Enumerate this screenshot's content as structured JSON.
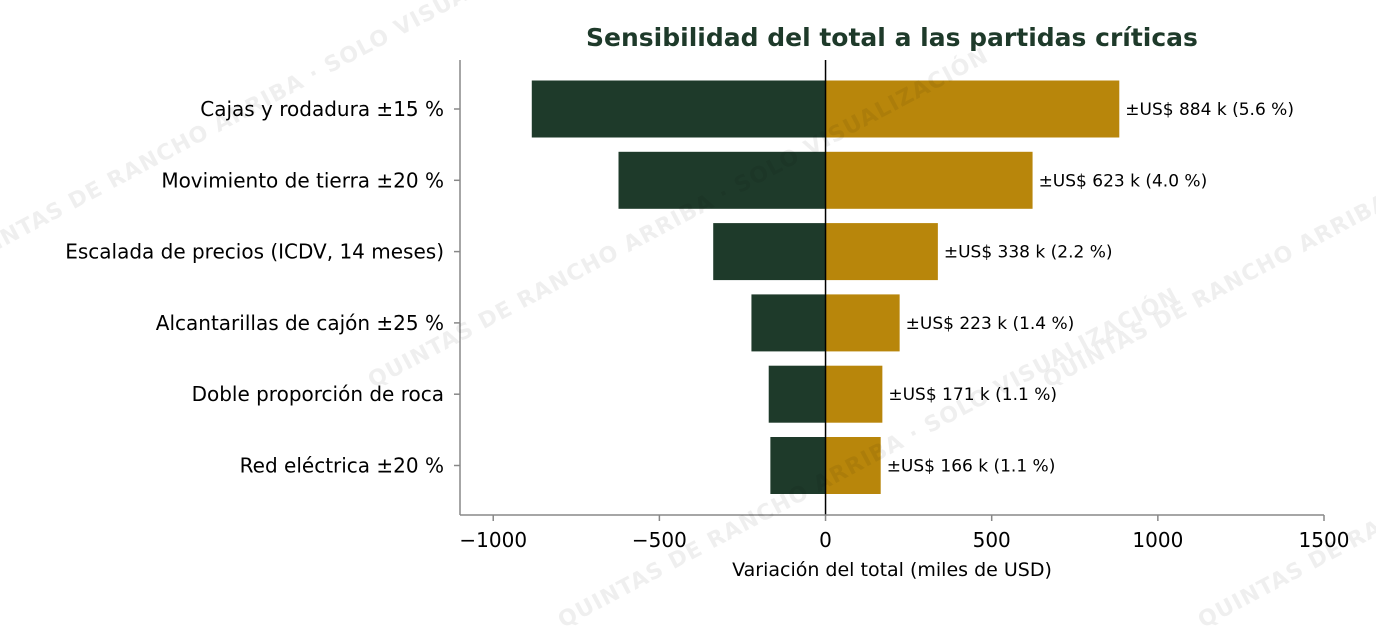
{
  "chart_data": {
    "type": "bar",
    "orientation": "horizontal",
    "style": "tornado",
    "title": "Sensibilidad del total a las partidas críticas",
    "xlabel": "Variación del total (miles de USD)",
    "ylabel": "",
    "xlim": [
      -1100,
      1500
    ],
    "xticks": [
      -1000,
      -500,
      0,
      500,
      1000,
      1500
    ],
    "xtick_labels": [
      "−1000",
      "−500",
      "0",
      "500",
      "1000",
      "1500"
    ],
    "categories": [
      "Cajas y rodadura ±15 %",
      "Movimiento de tierra ±20 %",
      "Escalada de precios (ICDV, 14 meses)",
      "Alcantarillas de cajón ±25 %",
      "Doble proporción de roca",
      "Red eléctrica ±20 %"
    ],
    "values": [
      884,
      623,
      338,
      223,
      171,
      166
    ],
    "series": [
      {
        "values": [
          -884,
          -623,
          -338,
          -223,
          -171,
          -166
        ]
      },
      {
        "values": [
          884,
          623,
          338,
          223,
          171,
          166
        ]
      }
    ],
    "data_labels": [
      "±US$ 884 k (5.6 %)",
      "±US$ 623 k (4.0 %)",
      "±US$ 338 k (2.2 %)",
      "±US$ 223 k (1.4 %)",
      "±US$ 171 k (1.1 %)",
      "±US$ 166 k (1.1 %)"
    ],
    "grid": false,
    "colors": {
      "negative": "#1e3a2a",
      "positive": "#b8860b",
      "title": "#1e3a2a",
      "axis": "#888888"
    }
  },
  "watermark": "QUINTAS DE RANCHO ARRIBA · SOLO VISUALIZACIÓN"
}
